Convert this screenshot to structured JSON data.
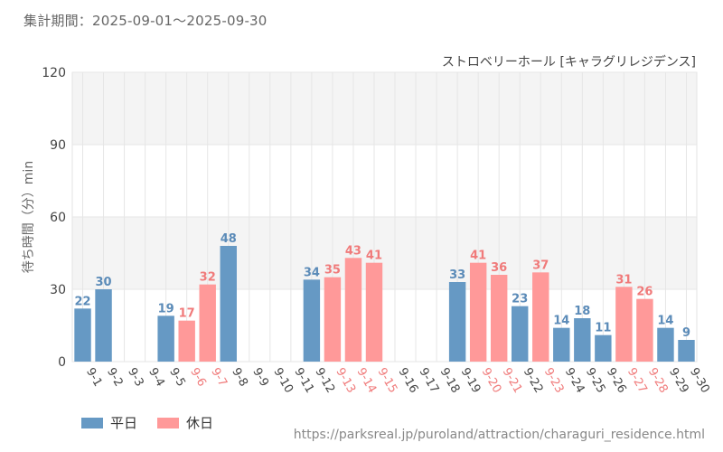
{
  "header": {
    "period": "集計期間：2025-09-01～2025-09-30",
    "subtitle": "ストロベリーホール [キャラグリレジデンス]"
  },
  "legend": {
    "weekday": "平日",
    "holiday": "休日"
  },
  "source": "https://parksreal.jp/puroland/attraction/charaguri_residence.html",
  "colors": {
    "weekday": "#6699c4",
    "holiday": "#ff9999",
    "weekday_text": "#5b8bb8",
    "holiday_text": "#f07a7a"
  },
  "chart_data": {
    "type": "bar",
    "title": "ストロベリーホール [キャラグリレジデンス]",
    "xlabel": "",
    "ylabel": "待ち時間（分）min",
    "ylim": [
      0,
      120
    ],
    "yticks": [
      0,
      30,
      60,
      90,
      120
    ],
    "categories": [
      "9-1",
      "9-2",
      "9-3",
      "9-4",
      "9-5",
      "9-6",
      "9-7",
      "9-8",
      "9-9",
      "9-10",
      "9-11",
      "9-12",
      "9-13",
      "9-14",
      "9-15",
      "9-16",
      "9-17",
      "9-18",
      "9-19",
      "9-20",
      "9-21",
      "9-22",
      "9-23",
      "9-24",
      "9-25",
      "9-26",
      "9-27",
      "9-28",
      "9-29",
      "9-30"
    ],
    "values": [
      22,
      30,
      null,
      null,
      19,
      17,
      32,
      48,
      null,
      null,
      null,
      34,
      35,
      43,
      41,
      null,
      null,
      null,
      33,
      41,
      36,
      23,
      37,
      14,
      18,
      11,
      31,
      26,
      14,
      9
    ],
    "day_type": [
      "weekday",
      "weekday",
      "weekday",
      "weekday",
      "weekday",
      "holiday",
      "holiday",
      "weekday",
      "weekday",
      "weekday",
      "weekday",
      "weekday",
      "holiday",
      "holiday",
      "holiday",
      "weekday",
      "weekday",
      "weekday",
      "weekday",
      "holiday",
      "holiday",
      "weekday",
      "holiday",
      "weekday",
      "weekday",
      "weekday",
      "holiday",
      "holiday",
      "weekday",
      "weekday"
    ],
    "series": [
      {
        "name": "平日",
        "key": "weekday"
      },
      {
        "name": "休日",
        "key": "holiday"
      }
    ],
    "grid": true,
    "legend_position": "bottom-left"
  }
}
